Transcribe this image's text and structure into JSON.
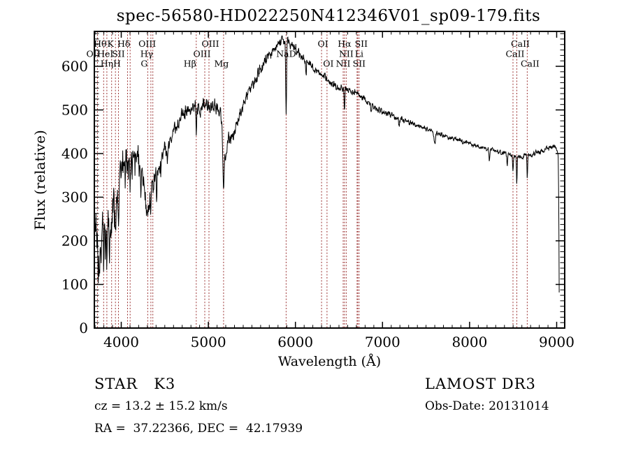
{
  "title": "spec-56580-HD022250N412346V01_sp09-179.fits",
  "footer": {
    "class_label": "STAR   K3",
    "survey": "LAMOST DR3",
    "cz": "cz = 13.2 ± 15.2 km/s",
    "obs_date": "Obs-Date: 20131014",
    "radec": "RA =  37.22366, DEC =  42.17939"
  },
  "chart_data": {
    "type": "line",
    "title": "spec-56580-HD022250N412346V01_sp09-179.fits",
    "xlabel": "Wavelength (Å)",
    "ylabel": "Flux (relative)",
    "xlim": [
      3691,
      9092
    ],
    "ylim": [
      0,
      680
    ],
    "xticks": [
      4000,
      5000,
      6000,
      7000,
      8000,
      9000
    ],
    "yticks": [
      0,
      100,
      200,
      300,
      400,
      500,
      600
    ],
    "x_minor_step": 100,
    "y_minor_step": 12.5,
    "grid": false,
    "legend": "none",
    "trace_color": "#000000",
    "marker_color": "#9c3434",
    "spectral_lines": [
      {
        "label": "OII",
        "wavelength": 3727,
        "row": 2,
        "dx": -6
      },
      {
        "label": "Hθ",
        "wavelength": 3798,
        "row": 1,
        "dx": -5
      },
      {
        "label": "Hη",
        "wavelength": 3835,
        "row": 3,
        "dx": 0
      },
      {
        "label": "HeI",
        "wavelength": 3889,
        "row": 2,
        "dx": -9
      },
      {
        "label": "K",
        "wavelength": 3933,
        "row": 1,
        "dx": -7
      },
      {
        "label": "H",
        "wavelength": 3968,
        "row": 3,
        "dx": -2
      },
      {
        "label": "SII",
        "wavelength": 4072,
        "row": 2,
        "dx": -13
      },
      {
        "label": "Hδ",
        "wavelength": 4102,
        "row": 1,
        "dx": -9
      },
      {
        "label": "G",
        "wavelength": 4304,
        "row": 3,
        "dx": -5
      },
      {
        "label": "Hγ",
        "wavelength": 4340,
        "row": 2,
        "dx": -6
      },
      {
        "label": "OIII",
        "wavelength": 4363,
        "row": 1,
        "dx": -8
      },
      {
        "label": "Hβ",
        "wavelength": 4861,
        "row": 3,
        "dx": -9
      },
      {
        "label": "OIII",
        "wavelength": 4959,
        "row": 2,
        "dx": -4
      },
      {
        "label": "OIII",
        "wavelength": 5007,
        "row": 1,
        "dx": 2
      },
      {
        "label": "Mg",
        "wavelength": 5175,
        "row": 3,
        "dx": -3
      },
      {
        "label": "NaD",
        "wavelength": 5893,
        "row": 2,
        "dx": 0
      },
      {
        "label": "OI",
        "wavelength": 6300,
        "row": 1,
        "dx": 2
      },
      {
        "label": "OI",
        "wavelength": 6363,
        "row": 3,
        "dx": 2
      },
      {
        "label": "NII",
        "wavelength": 6548,
        "row": 3,
        "dx": 0
      },
      {
        "label": "Hα",
        "wavelength": 6563,
        "row": 1,
        "dx": 0
      },
      {
        "label": "NII",
        "wavelength": 6583,
        "row": 2,
        "dx": 0
      },
      {
        "label": "Li",
        "wavelength": 6708,
        "row": 2,
        "dx": 3
      },
      {
        "label": "SII",
        "wavelength": 6716,
        "row": 3,
        "dx": 2
      },
      {
        "label": "SII",
        "wavelength": 6731,
        "row": 1,
        "dx": 3
      },
      {
        "label": "CaII",
        "wavelength": 8498,
        "row": 2,
        "dx": 3
      },
      {
        "label": "CaII",
        "wavelength": 8542,
        "row": 1,
        "dx": 5
      },
      {
        "label": "CaII",
        "wavelength": 8662,
        "row": 3,
        "dx": 4
      }
    ],
    "envelope": [
      [
        3693,
        240
      ],
      [
        3710,
        215
      ],
      [
        3730,
        205
      ],
      [
        3760,
        215
      ],
      [
        3800,
        235
      ],
      [
        3850,
        255
      ],
      [
        3900,
        270
      ],
      [
        3950,
        310
      ],
      [
        4000,
        365
      ],
      [
        4050,
        385
      ],
      [
        4100,
        388
      ],
      [
        4160,
        395
      ],
      [
        4220,
        385
      ],
      [
        4260,
        330
      ],
      [
        4300,
        258
      ],
      [
        4340,
        305
      ],
      [
        4400,
        345
      ],
      [
        4470,
        395
      ],
      [
        4540,
        420
      ],
      [
        4600,
        448
      ],
      [
        4680,
        485
      ],
      [
        4760,
        498
      ],
      [
        4840,
        505
      ],
      [
        4900,
        503
      ],
      [
        4960,
        512
      ],
      [
        5010,
        512
      ],
      [
        5080,
        505
      ],
      [
        5140,
        498
      ],
      [
        5160,
        450
      ],
      [
        5175,
        360
      ],
      [
        5195,
        400
      ],
      [
        5230,
        435
      ],
      [
        5290,
        445
      ],
      [
        5360,
        490
      ],
      [
        5450,
        540
      ],
      [
        5550,
        575
      ],
      [
        5650,
        612
      ],
      [
        5750,
        638
      ],
      [
        5850,
        660
      ],
      [
        5900,
        658
      ],
      [
        5950,
        650
      ],
      [
        6000,
        640
      ],
      [
        6100,
        616
      ],
      [
        6200,
        598
      ],
      [
        6300,
        580
      ],
      [
        6400,
        563
      ],
      [
        6500,
        550
      ],
      [
        6600,
        545
      ],
      [
        6700,
        538
      ],
      [
        6800,
        525
      ],
      [
        6900,
        508
      ],
      [
        7000,
        495
      ],
      [
        7100,
        488
      ],
      [
        7200,
        480
      ],
      [
        7300,
        472
      ],
      [
        7400,
        465
      ],
      [
        7500,
        457
      ],
      [
        7600,
        450
      ],
      [
        7700,
        442
      ],
      [
        7800,
        435
      ],
      [
        7900,
        429
      ],
      [
        8000,
        423
      ],
      [
        8100,
        416
      ],
      [
        8200,
        411
      ],
      [
        8300,
        406
      ],
      [
        8400,
        401
      ],
      [
        8500,
        396
      ],
      [
        8600,
        393
      ],
      [
        8700,
        397
      ],
      [
        8800,
        404
      ],
      [
        8900,
        411
      ],
      [
        8960,
        416
      ],
      [
        9000,
        411
      ],
      [
        9010,
        403
      ],
      [
        9018,
        390
      ],
      [
        9024,
        260
      ],
      [
        9028,
        100
      ],
      [
        9032,
        12
      ]
    ],
    "noise_amplitude": [
      [
        3693,
        62
      ],
      [
        3750,
        58
      ],
      [
        3800,
        52
      ],
      [
        3900,
        46
      ],
      [
        4000,
        33
      ],
      [
        4150,
        28
      ],
      [
        4300,
        26
      ],
      [
        4500,
        22
      ],
      [
        4700,
        18
      ],
      [
        5000,
        17
      ],
      [
        5200,
        16
      ],
      [
        5500,
        14
      ],
      [
        5800,
        13
      ],
      [
        6000,
        12
      ],
      [
        6300,
        9
      ],
      [
        6600,
        8
      ],
      [
        7000,
        6.5
      ],
      [
        7500,
        5.5
      ],
      [
        8000,
        5
      ],
      [
        8500,
        5
      ],
      [
        8800,
        6
      ],
      [
        9032,
        5
      ]
    ],
    "absorption_features": [
      [
        3734,
        85,
        4
      ],
      [
        3750,
        75,
        4
      ],
      [
        3771,
        70,
        4
      ],
      [
        3798,
        80,
        4
      ],
      [
        3820,
        55,
        4
      ],
      [
        3835,
        85,
        4
      ],
      [
        3862,
        50,
        4
      ],
      [
        3889,
        90,
        4
      ],
      [
        3934,
        105,
        5
      ],
      [
        3969,
        95,
        5
      ],
      [
        4045,
        40,
        3
      ],
      [
        4102,
        55,
        4
      ],
      [
        4227,
        65,
        4
      ],
      [
        4340,
        45,
        4
      ],
      [
        4455,
        50,
        4
      ],
      [
        4531,
        45,
        4
      ],
      [
        4861,
        55,
        4
      ],
      [
        5172,
        45,
        6
      ],
      [
        5893,
        170,
        5
      ],
      [
        6122,
        25,
        4
      ],
      [
        6563,
        45,
        4
      ],
      [
        6870,
        20,
        6
      ],
      [
        7190,
        15,
        5
      ],
      [
        7600,
        30,
        8
      ],
      [
        8227,
        28,
        4
      ],
      [
        8432,
        28,
        4
      ],
      [
        8498,
        38,
        4
      ],
      [
        8542,
        62,
        4
      ],
      [
        8662,
        52,
        4
      ]
    ]
  }
}
